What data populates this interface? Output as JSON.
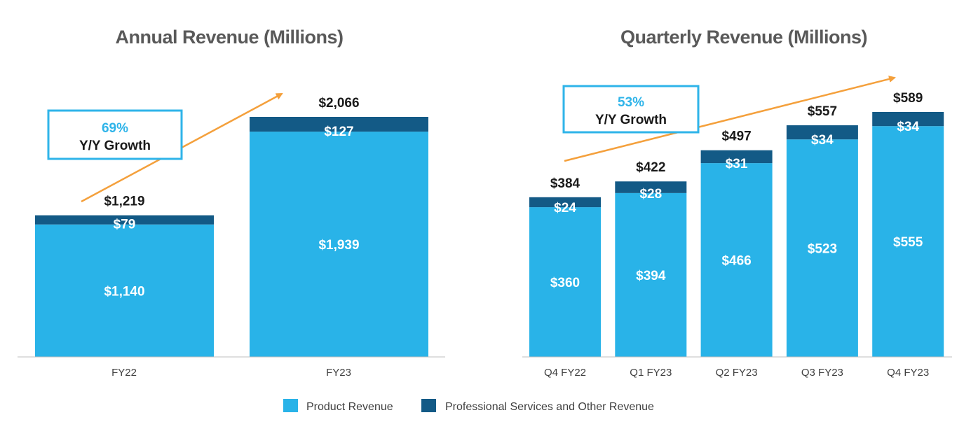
{
  "colors": {
    "product": "#29b3e8",
    "services": "#135a86",
    "arrow": "#f4a03c",
    "callout_border": "#2fb4e9"
  },
  "legend": {
    "product_label": "Product Revenue",
    "services_label": "Professional Services and Other Revenue"
  },
  "chart_data": [
    {
      "type": "bar",
      "stacked": true,
      "title": "Annual Revenue (Millions)",
      "categories": [
        "FY22",
        "FY23"
      ],
      "series": [
        {
          "name": "Product Revenue",
          "values": [
            1140,
            1939
          ],
          "labels": [
            "$1,140",
            "$1,939"
          ]
        },
        {
          "name": "Professional Services and Other Revenue",
          "values": [
            79,
            127
          ],
          "labels": [
            "$79",
            "$127"
          ]
        }
      ],
      "totals": [
        1219,
        2066
      ],
      "total_labels": [
        "$1,219",
        "$2,066"
      ],
      "ylim": [
        0,
        2066
      ],
      "grid": false,
      "legend": "bottom",
      "annotation": {
        "value": "69%",
        "label": "Y/Y Growth"
      }
    },
    {
      "type": "bar",
      "stacked": true,
      "title": "Quarterly Revenue (Millions)",
      "categories": [
        "Q4 FY22",
        "Q1 FY23",
        "Q2 FY23",
        "Q3 FY23",
        "Q4 FY23"
      ],
      "series": [
        {
          "name": "Product Revenue",
          "values": [
            360,
            394,
            466,
            523,
            555
          ],
          "labels": [
            "$360",
            "$394",
            "$466",
            "$523",
            "$555"
          ]
        },
        {
          "name": "Professional Services and Other Revenue",
          "values": [
            24,
            28,
            31,
            34,
            34
          ],
          "labels": [
            "$24",
            "$28",
            "$31",
            "$34",
            "$34"
          ]
        }
      ],
      "totals": [
        384,
        422,
        497,
        557,
        589
      ],
      "total_labels": [
        "$384",
        "$422",
        "$497",
        "$557",
        "$589"
      ],
      "ylim": [
        0,
        589
      ],
      "grid": false,
      "legend": "bottom",
      "annotation": {
        "value": "53%",
        "label": "Y/Y Growth"
      }
    }
  ]
}
